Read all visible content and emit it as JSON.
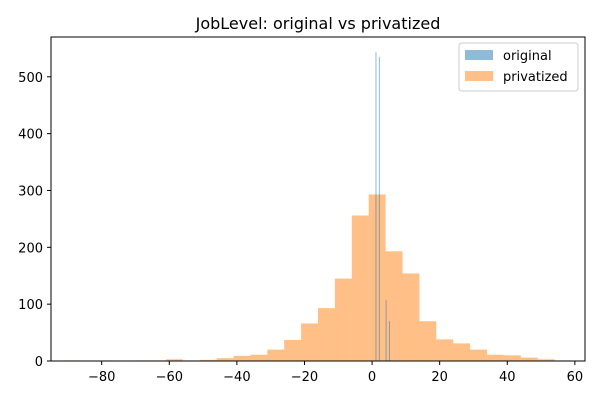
{
  "chart_data": {
    "type": "histogram",
    "title": "JobLevel: original vs privatized",
    "xlabel": "",
    "ylabel": "",
    "xlim": [
      -95,
      63
    ],
    "ylim": [
      0,
      570
    ],
    "x_ticks": [
      -80,
      -60,
      -40,
      -20,
      0,
      20,
      40,
      60
    ],
    "y_ticks": [
      0,
      100,
      200,
      300,
      400,
      500
    ],
    "grid": false,
    "legend_position": "top-right",
    "series": [
      {
        "name": "original",
        "color": "#1f77b4",
        "opacity": 0.5,
        "bins": [
          {
            "x0": 1.0,
            "x1": 1.3,
            "value": 543
          },
          {
            "x0": 2.0,
            "x1": 2.3,
            "value": 535
          },
          {
            "x0": 3.0,
            "x1": 3.3,
            "value": 0
          },
          {
            "x0": 4.0,
            "x1": 4.3,
            "value": 107
          },
          {
            "x0": 5.0,
            "x1": 5.3,
            "value": 70
          }
        ]
      },
      {
        "name": "privatized",
        "color": "#ff7f0e",
        "opacity": 0.5,
        "bins": [
          {
            "x0": -91,
            "x1": -86,
            "value": 1
          },
          {
            "x0": -86,
            "x1": -81,
            "value": 0
          },
          {
            "x0": -81,
            "x1": -76,
            "value": 1
          },
          {
            "x0": -76,
            "x1": -71,
            "value": 0
          },
          {
            "x0": -71,
            "x1": -66,
            "value": 1
          },
          {
            "x0": -66,
            "x1": -61,
            "value": 1
          },
          {
            "x0": -61,
            "x1": -56,
            "value": 3
          },
          {
            "x0": -56,
            "x1": -51,
            "value": 1
          },
          {
            "x0": -51,
            "x1": -46,
            "value": 2
          },
          {
            "x0": -46,
            "x1": -41,
            "value": 5
          },
          {
            "x0": -41,
            "x1": -36,
            "value": 9
          },
          {
            "x0": -36,
            "x1": -31,
            "value": 11
          },
          {
            "x0": -31,
            "x1": -26,
            "value": 20
          },
          {
            "x0": -26,
            "x1": -21,
            "value": 37
          },
          {
            "x0": -21,
            "x1": -16,
            "value": 66
          },
          {
            "x0": -16,
            "x1": -11,
            "value": 93
          },
          {
            "x0": -11,
            "x1": -6,
            "value": 145
          },
          {
            "x0": -6,
            "x1": -1,
            "value": 256
          },
          {
            "x0": -1,
            "x1": 4,
            "value": 293
          },
          {
            "x0": 4,
            "x1": 9,
            "value": 193
          },
          {
            "x0": 9,
            "x1": 14,
            "value": 154
          },
          {
            "x0": 14,
            "x1": 19,
            "value": 70
          },
          {
            "x0": 19,
            "x1": 24,
            "value": 38
          },
          {
            "x0": 24,
            "x1": 29,
            "value": 31
          },
          {
            "x0": 29,
            "x1": 34,
            "value": 20
          },
          {
            "x0": 34,
            "x1": 39,
            "value": 11
          },
          {
            "x0": 39,
            "x1": 44,
            "value": 10
          },
          {
            "x0": 44,
            "x1": 49,
            "value": 6
          },
          {
            "x0": 49,
            "x1": 54,
            "value": 3
          },
          {
            "x0": 54,
            "x1": 59,
            "value": 1
          }
        ]
      }
    ]
  }
}
